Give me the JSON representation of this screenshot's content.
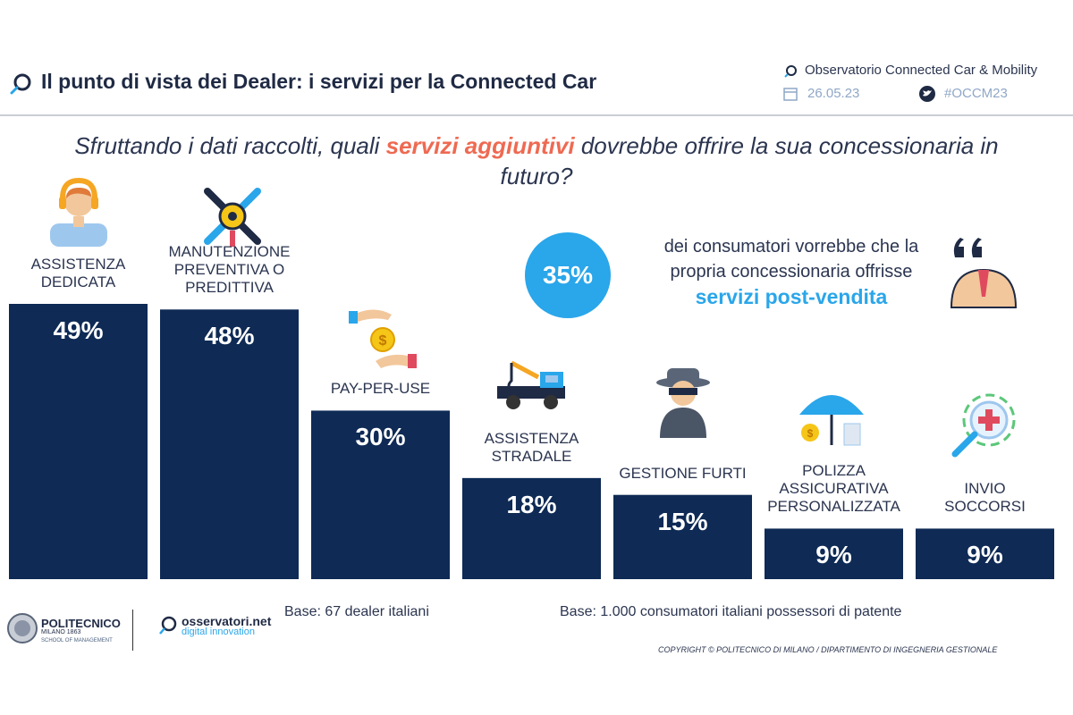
{
  "header": {
    "title": "Il punto di vista dei Dealer: i servizi per la Connected Car",
    "org": "Observatorio Connected Car & Mobility",
    "date": "26.05.23",
    "hashtag": "#OCCM23"
  },
  "question": {
    "part1": "Sfruttando i dati raccolti, quali ",
    "highlight": "servizi aggiuntivi",
    "part2": " dovrebbe offrire la sua concessionaria in futuro?"
  },
  "stat": {
    "value": "35%",
    "line1": "dei consumatori vorrebbe che la",
    "line2": "propria concessionaria offrisse",
    "highlight": "servizi post-vendita"
  },
  "chart_data": {
    "type": "bar",
    "categories": [
      "ASSISTENZA DEDICATA",
      "MANUTENZIONE PREVENTIVA O PREDITTIVA",
      "PAY-PER-USE",
      "ASSISTENZA STRADALE",
      "GESTIONE FURTI",
      "POLIZZA ASSICURATIVA PERSONALIZZATA",
      "INVIO SOCCORSI"
    ],
    "values": [
      49,
      48,
      30,
      18,
      15,
      9,
      9
    ],
    "value_labels": [
      "49%",
      "48%",
      "30%",
      "18%",
      "15%",
      "9%",
      "9%"
    ],
    "label_lines": [
      [
        "ASSISTENZA",
        "DEDICATA"
      ],
      [
        "MANUTENZIONE",
        "PREVENTIVA O",
        "PREDITTIVA"
      ],
      [
        "PAY-PER-USE"
      ],
      [
        "ASSISTENZA",
        "STRADALE"
      ],
      [
        "GESTIONE FURTI"
      ],
      [
        "POLIZZA",
        "ASSICURATIVA",
        "PERSONALIZZATA"
      ],
      [
        "INVIO",
        "SOCCORSI"
      ]
    ],
    "ylim": [
      0,
      49
    ],
    "grid": false,
    "bar_color": "#0e2a55"
  },
  "footer": {
    "base_dealers": "Base: 67 dealer italiani",
    "base_consumers": "Base: 1.000 consumatori italiani possessori di patente",
    "copyright": "COPYRIGHT © POLITECNICO DI MILANO / DIPARTIMENTO DI INGEGNERIA GESTIONALE",
    "polimi_name": "POLITECNICO",
    "polimi_sub": "MILANO 1863",
    "polimi_sub2": "SCHOOL OF MANAGEMENT",
    "osservatori_name": "osservatori.net",
    "osservatori_sub": "digital innovation"
  },
  "colors": {
    "accent": "#ee6a52",
    "highlight": "#2aa6ea",
    "bar": "#0e2a55"
  }
}
